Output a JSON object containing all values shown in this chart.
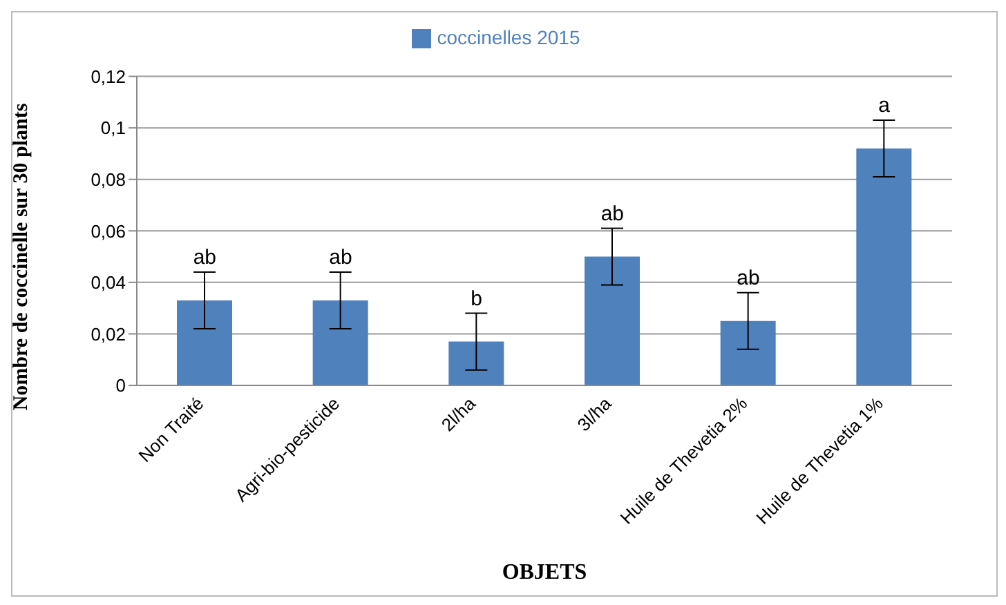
{
  "chart_data": {
    "type": "bar",
    "categories": [
      "Non Traité",
      "Agri-bio-pesticide",
      "2l/ha",
      "3l/ha",
      "Huile de Thevetia 2%",
      "Huile de Thevetia 1%"
    ],
    "series": [
      {
        "name": "coccinelles 2015",
        "color": "#4f81bd",
        "values": [
          0.033,
          0.033,
          0.017,
          0.05,
          0.025,
          0.092
        ],
        "errors": [
          0.011,
          0.011,
          0.011,
          0.011,
          0.011,
          0.011
        ]
      }
    ],
    "xlabel": "OBJETS",
    "ylabel": "Nombre de coccinelle sur 30 plants",
    "ylim": [
      0,
      0.12
    ],
    "yticks": [
      {
        "value": 0,
        "label": "0"
      },
      {
        "value": 0.02,
        "label": "0,02"
      },
      {
        "value": 0.04,
        "label": "0,04"
      },
      {
        "value": 0.06,
        "label": "0,06"
      },
      {
        "value": 0.08,
        "label": "0,08"
      },
      {
        "value": 0.1,
        "label": "0,1"
      },
      {
        "value": 0.12,
        "label": "0,12"
      }
    ],
    "grid": "y",
    "legend": "top",
    "annotations": [
      {
        "text": "ab",
        "x": "Non Traité",
        "y": 0.044
      },
      {
        "text": "ab",
        "x": "Agri-bio-pesticide",
        "y": 0.044
      },
      {
        "text": "b",
        "x": "2l/ha",
        "y": 0.028
      },
      {
        "text": "ab",
        "x": "3l/ha",
        "y": 0.061
      },
      {
        "text": "ab",
        "x": "Huile de Thevetia 2%",
        "y": 0.036
      },
      {
        "text": "a",
        "x": "Huile de Thevetia 1%",
        "y": 0.103
      }
    ]
  }
}
